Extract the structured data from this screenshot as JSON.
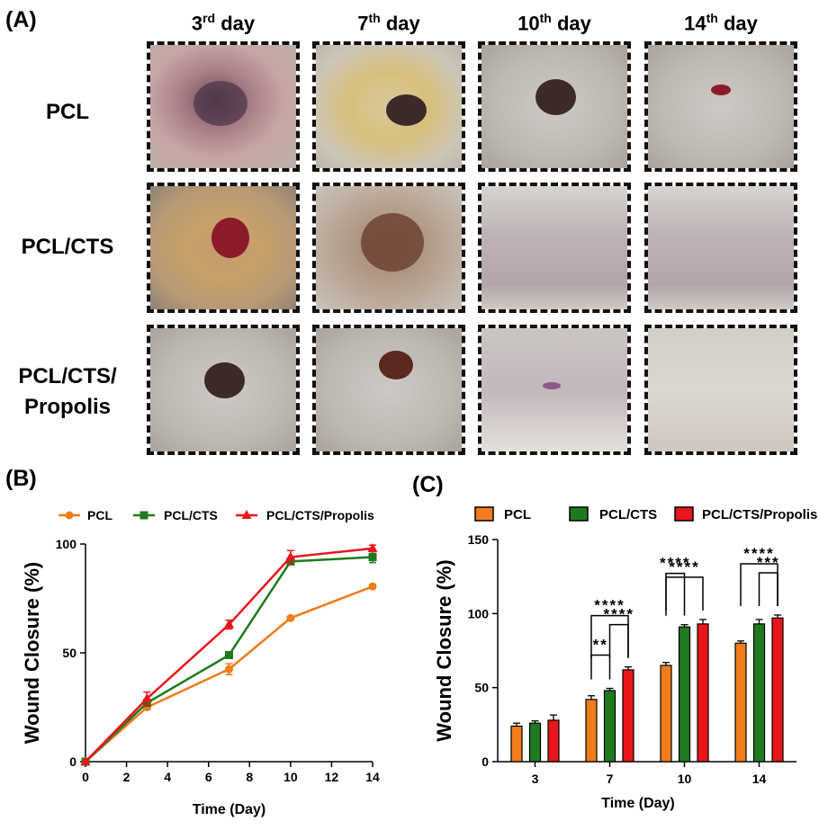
{
  "panel_labels": {
    "a": "(A)",
    "b": "(B)",
    "c": "(C)"
  },
  "days": [
    {
      "num": "3",
      "sup": "rd",
      "word": "day"
    },
    {
      "num": "7",
      "sup": "th",
      "word": "day"
    },
    {
      "num": "10",
      "sup": "th",
      "word": "day"
    },
    {
      "num": "14",
      "sup": "th",
      "word": "day"
    }
  ],
  "groups": [
    {
      "label": "PCL"
    },
    {
      "label": "PCL/CTS"
    },
    {
      "label_line1": "PCL/CTS/",
      "label_line2": "Propolis"
    }
  ],
  "colors": {
    "pcl": "#f07c1c",
    "pcl_cts": "#1f7a1f",
    "pcl_cts_propolis": "#e8161b",
    "skin_light": "#d9d6d2",
    "skin_pink": "#c8aeb0",
    "wound_dark": "#3a2a28",
    "wound_red": "#8b1a2a"
  },
  "photos": [
    [
      "wound-large-pink",
      "wound-yellow-dark",
      "wound-dark-scab",
      "wound-small-red"
    ],
    [
      "wound-red-yellow",
      "wound-brown-scab",
      "wound-healed-pink",
      "wound-healed-pink"
    ],
    [
      "wound-dark-scab",
      "wound-small-dark",
      "wound-healed-scar",
      "wound-fully-healed"
    ]
  ],
  "chart_data": [
    {
      "type": "line",
      "legend": [
        "PCL",
        "PCL/CTS",
        "PCL/CTS/Propolis"
      ],
      "xlabel": "Time (Day)",
      "ylabel": "Wound Closure (%)",
      "xlim": [
        0,
        14
      ],
      "ylim": [
        0,
        100
      ],
      "xticks": [
        "0",
        "2",
        "4",
        "6",
        "8",
        "10",
        "12",
        "14"
      ],
      "yticks": [
        "0",
        "50",
        "100"
      ],
      "x": [
        0,
        3,
        7,
        10,
        14
      ],
      "series": [
        {
          "name": "PCL",
          "values": [
            0,
            25,
            42.5,
            66,
            80.5
          ],
          "errors": [
            0,
            1,
            2.5,
            0.8,
            1
          ],
          "marker": "circle"
        },
        {
          "name": "PCL/CTS",
          "values": [
            0,
            27,
            49,
            92,
            94
          ],
          "errors": [
            0,
            1,
            1.5,
            1.5,
            2.5
          ],
          "marker": "square"
        },
        {
          "name": "PCL/CTS/Propolis",
          "values": [
            0,
            29,
            63,
            94,
            98
          ],
          "errors": [
            0,
            3,
            2,
            3,
            1.5
          ],
          "marker": "triangle"
        }
      ]
    },
    {
      "type": "bar",
      "legend": [
        "PCL",
        "PCL/CTS",
        "PCL/CTS/Propolis"
      ],
      "xlabel": "Time (Day)",
      "ylabel": "Wound Closure (%)",
      "ylim": [
        0,
        150
      ],
      "yticks": [
        "0",
        "50",
        "100",
        "150"
      ],
      "categories": [
        "3",
        "7",
        "10",
        "14"
      ],
      "series": [
        {
          "name": "PCL",
          "values": [
            24,
            42,
            65,
            80
          ],
          "errors": [
            2,
            2.5,
            2,
            1.5
          ]
        },
        {
          "name": "PCL/CTS",
          "values": [
            26,
            48,
            91,
            93
          ],
          "errors": [
            1.5,
            1.5,
            1.5,
            3
          ]
        },
        {
          "name": "PCL/CTS/Propolis",
          "values": [
            28,
            62,
            93,
            97
          ],
          "errors": [
            3.5,
            2,
            3,
            2
          ]
        }
      ],
      "significance": [
        {
          "category": 1,
          "from": 0,
          "to": 1,
          "label": "**",
          "level": 0
        },
        {
          "category": 1,
          "from": 1,
          "to": 2,
          "label": "****",
          "level": 1
        },
        {
          "category": 1,
          "from": 0,
          "to": 2,
          "label": "****",
          "level": 2
        },
        {
          "category": 2,
          "from": 0,
          "to": 2,
          "label": "****",
          "level": 1
        },
        {
          "category": 2,
          "from": 0,
          "to": 1,
          "label": "****",
          "level": 2
        },
        {
          "category": 3,
          "from": 1,
          "to": 2,
          "label": "***",
          "level": 1
        },
        {
          "category": 3,
          "from": 0,
          "to": 2,
          "label": "****",
          "level": 2
        }
      ]
    }
  ]
}
